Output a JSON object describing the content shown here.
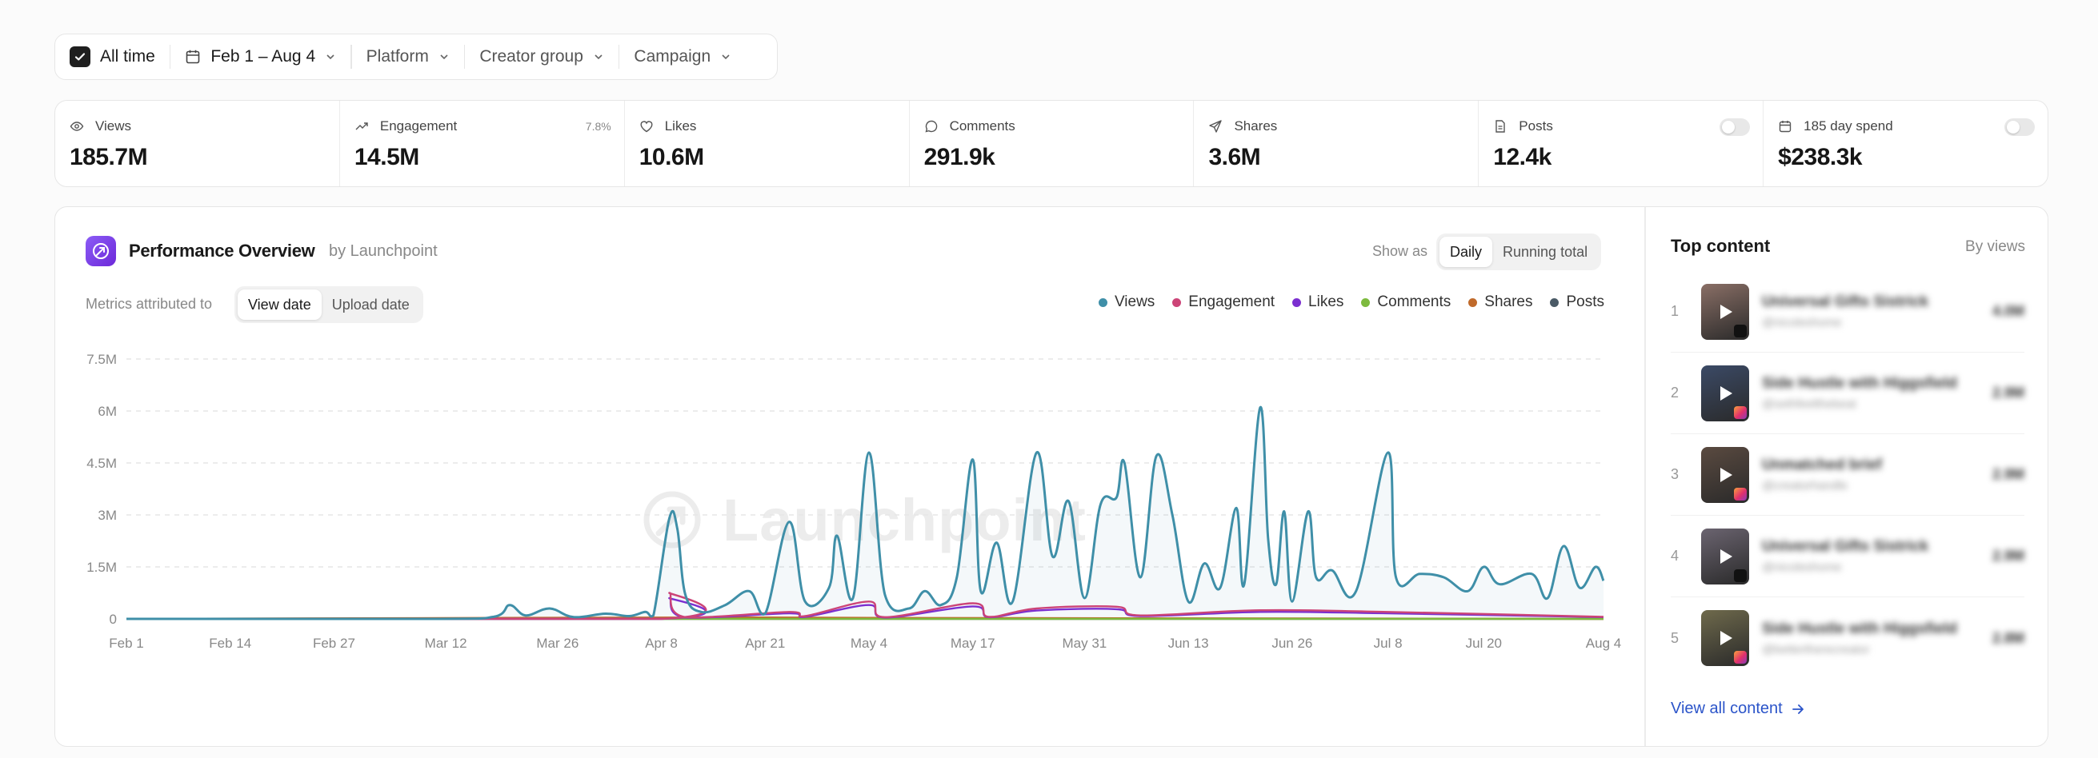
{
  "filters": {
    "all_time": "All time",
    "date_range": "Feb 1 – Aug 4",
    "platform": "Platform",
    "creator_group": "Creator group",
    "campaign": "Campaign"
  },
  "stats": [
    {
      "label": "Views",
      "value": "185.7M",
      "icon": "eye-icon"
    },
    {
      "label": "Engagement",
      "value": "14.5M",
      "extra": "7.8%",
      "icon": "trend-up-icon"
    },
    {
      "label": "Likes",
      "value": "10.6M",
      "icon": "heart-icon"
    },
    {
      "label": "Comments",
      "value": "291.9k",
      "icon": "comment-icon"
    },
    {
      "label": "Shares",
      "value": "3.6M",
      "icon": "send-icon"
    },
    {
      "label": "Posts",
      "value": "12.4k",
      "icon": "document-icon",
      "toggle": false
    },
    {
      "label": "185 day spend",
      "value": "$238.3k",
      "icon": "calendar-icon",
      "toggle": false
    }
  ],
  "performance": {
    "title": "Performance Overview",
    "by": "by Launchpoint",
    "show_as_label": "Show as",
    "show_as_options": [
      "Daily",
      "Running total"
    ],
    "show_as_selected": "Daily",
    "metrics_label": "Metrics attributed to",
    "metrics_options": [
      "View date",
      "Upload date"
    ],
    "metrics_selected": "View date",
    "watermark": "Launchpoint"
  },
  "chart_data": {
    "type": "line",
    "x_ticks": [
      "Feb 1",
      "Feb 14",
      "Feb 27",
      "Mar 12",
      "Mar 26",
      "Apr 8",
      "Apr 21",
      "May 4",
      "May 17",
      "May 31",
      "Jun 13",
      "Jun 26",
      "Jul 8",
      "Jul 20",
      "Aug 4"
    ],
    "y_ticks": [
      "0",
      "1.5M",
      "3M",
      "4.5M",
      "6M",
      "7.5M"
    ],
    "ylim": [
      0,
      7500000
    ],
    "grid": true,
    "legend_position": "top-right",
    "series": [
      {
        "name": "Views",
        "color": "#3f8fa8",
        "points": [
          [
            "Feb 1",
            0
          ],
          [
            "Mar 10",
            0
          ],
          [
            "Mar 18",
            60000
          ],
          [
            "Mar 20",
            400000
          ],
          [
            "Mar 22",
            100000
          ],
          [
            "Mar 25",
            300000
          ],
          [
            "Mar 28",
            50000
          ],
          [
            "Apr 1",
            150000
          ],
          [
            "Apr 4",
            80000
          ],
          [
            "Apr 6",
            200000
          ],
          [
            "Apr 7",
            100000
          ],
          [
            "Apr 9",
            2900000
          ],
          [
            "Apr 10",
            2600000
          ],
          [
            "Apr 11",
            700000
          ],
          [
            "Apr 13",
            200000
          ],
          [
            "Apr 16",
            400000
          ],
          [
            "Apr 19",
            800000
          ],
          [
            "Apr 21",
            150000
          ],
          [
            "Apr 24",
            2800000
          ],
          [
            "Apr 26",
            500000
          ],
          [
            "Apr 29",
            900000
          ],
          [
            "Apr 30",
            2400000
          ],
          [
            "May 2",
            600000
          ],
          [
            "May 4",
            4800000
          ],
          [
            "May 6",
            700000
          ],
          [
            "May 9",
            300000
          ],
          [
            "May 11",
            800000
          ],
          [
            "May 13",
            400000
          ],
          [
            "May 15",
            1200000
          ],
          [
            "May 17",
            4600000
          ],
          [
            "May 18",
            800000
          ],
          [
            "May 20",
            2200000
          ],
          [
            "May 22",
            500000
          ],
          [
            "May 25",
            4800000
          ],
          [
            "May 27",
            1800000
          ],
          [
            "May 29",
            3400000
          ],
          [
            "May 31",
            600000
          ],
          [
            "Jun 2",
            3300000
          ],
          [
            "Jun 4",
            3500000
          ],
          [
            "Jun 5",
            4500000
          ],
          [
            "Jun 7",
            1200000
          ],
          [
            "Jun 9",
            4700000
          ],
          [
            "Jun 11",
            3000000
          ],
          [
            "Jun 13",
            500000
          ],
          [
            "Jun 15",
            1600000
          ],
          [
            "Jun 17",
            900000
          ],
          [
            "Jun 19",
            3200000
          ],
          [
            "Jun 20",
            1000000
          ],
          [
            "Jun 22",
            6100000
          ],
          [
            "Jun 23",
            2300000
          ],
          [
            "Jun 24",
            1000000
          ],
          [
            "Jun 25",
            3100000
          ],
          [
            "Jun 26",
            500000
          ],
          [
            "Jun 28",
            3100000
          ],
          [
            "Jun 29",
            1200000
          ],
          [
            "Jul 1",
            1400000
          ],
          [
            "Jul 4",
            800000
          ],
          [
            "Jul 8",
            4800000
          ],
          [
            "Jul 9",
            1200000
          ],
          [
            "Jul 12",
            1300000
          ],
          [
            "Jul 15",
            1200000
          ],
          [
            "Jul 18",
            800000
          ],
          [
            "Jul 20",
            1500000
          ],
          [
            "Jul 22",
            1000000
          ],
          [
            "Jul 26",
            1300000
          ],
          [
            "Jul 28",
            600000
          ],
          [
            "Jul 30",
            2100000
          ],
          [
            "Aug 1",
            900000
          ],
          [
            "Aug 3",
            1500000
          ],
          [
            "Aug 4",
            1100000
          ]
        ]
      },
      {
        "name": "Engagement",
        "color": "#cc4477",
        "points": [
          [
            "Feb 1",
            0
          ],
          [
            "Apr 8",
            0
          ],
          [
            "Apr 9",
            750000
          ],
          [
            "Apr 11",
            50000
          ],
          [
            "Apr 24",
            200000
          ],
          [
            "Apr 26",
            80000
          ],
          [
            "May 4",
            500000
          ],
          [
            "May 6",
            50000
          ],
          [
            "May 17",
            450000
          ],
          [
            "May 19",
            60000
          ],
          [
            "May 25",
            300000
          ],
          [
            "Jun 4",
            350000
          ],
          [
            "Jun 7",
            100000
          ],
          [
            "Jun 22",
            250000
          ],
          [
            "Jul 8",
            200000
          ],
          [
            "Aug 4",
            60000
          ]
        ]
      },
      {
        "name": "Likes",
        "color": "#7b2fd0",
        "points": [
          [
            "Feb 1",
            0
          ],
          [
            "Apr 8",
            0
          ],
          [
            "Apr 9",
            600000
          ],
          [
            "Apr 11",
            40000
          ],
          [
            "Apr 24",
            160000
          ],
          [
            "Apr 26",
            60000
          ],
          [
            "May 4",
            400000
          ],
          [
            "May 6",
            40000
          ],
          [
            "May 17",
            360000
          ],
          [
            "May 19",
            50000
          ],
          [
            "May 25",
            240000
          ],
          [
            "Jun 4",
            280000
          ],
          [
            "Jun 7",
            80000
          ],
          [
            "Jun 22",
            200000
          ],
          [
            "Jul 8",
            160000
          ],
          [
            "Aug 4",
            50000
          ]
        ]
      },
      {
        "name": "Comments",
        "color": "#7dba3e",
        "points": [
          [
            "Feb 1",
            0
          ],
          [
            "Aug 4",
            0
          ]
        ]
      },
      {
        "name": "Shares",
        "color": "#c06a2b",
        "points": [
          [
            "Feb 1",
            0
          ],
          [
            "Apr 9",
            40000
          ],
          [
            "May 4",
            30000
          ],
          [
            "Aug 4",
            0
          ]
        ]
      },
      {
        "name": "Posts",
        "color": "#4a5a66",
        "points": [
          [
            "Feb 1",
            0
          ],
          [
            "Aug 4",
            0
          ]
        ]
      }
    ]
  },
  "top_content": {
    "title": "Top content",
    "sort": "By views",
    "items": [
      {
        "rank": "1",
        "name": "Universal Gifts Sistrick",
        "handle": "@nicoleshome",
        "views": "4.0M",
        "platform": "tiktok",
        "thumb": "#8a6f66"
      },
      {
        "rank": "2",
        "name": "Side Hustle with Higgsfield",
        "handle": "@sethfeelthebeat",
        "views": "2.9M",
        "platform": "instagram",
        "thumb": "#3b4a66"
      },
      {
        "rank": "3",
        "name": "Unmatched brief",
        "handle": "@creatorhandle",
        "views": "2.9M",
        "platform": "instagram",
        "thumb": "#5a4a40"
      },
      {
        "rank": "4",
        "name": "Universal Gifts Sistrick",
        "handle": "@nicoleshome",
        "views": "2.9M",
        "platform": "tiktok",
        "thumb": "#6b6470"
      },
      {
        "rank": "5",
        "name": "Side Hustle with Higgsfield",
        "handle": "@bettertherecreator",
        "views": "2.8M",
        "platform": "instagram",
        "thumb": "#6f6a4c"
      }
    ],
    "view_all": "View all content"
  }
}
